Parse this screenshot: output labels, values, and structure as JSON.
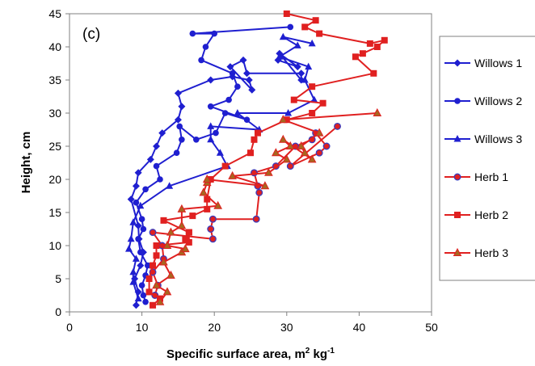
{
  "chart_data": {
    "type": "scatter",
    "panel_label": "(c)",
    "xlabel": "Specific surface area, m",
    "xlabel_sup1": "2",
    "xlabel_mid": " kg",
    "xlabel_sup2": "-1",
    "ylabel": "Height, cm",
    "xlim": [
      0,
      50
    ],
    "ylim": [
      0,
      45
    ],
    "xticks": [
      0,
      10,
      20,
      30,
      40,
      50
    ],
    "yticks": [
      0,
      5,
      10,
      15,
      20,
      25,
      30,
      35,
      40,
      45
    ],
    "grid": false,
    "legend_position": "right",
    "series": [
      {
        "name": "Willows 1",
        "color": "#1f1fd0",
        "marker": "diamond",
        "x": [
          9.2,
          9.5,
          9.0,
          9.8,
          10.2,
          9.6,
          9.5,
          8.5,
          9.2,
          9.5,
          11.2,
          12.0,
          12.8,
          15.0,
          15.5,
          15.0,
          19.5,
          22.5,
          24.8,
          25.2,
          22.2,
          24.0,
          24.5,
          32.0,
          32.0,
          29.0,
          31.5,
          28.8
        ],
        "y": [
          1,
          3,
          5,
          7,
          9,
          11,
          13,
          17,
          19,
          21,
          23,
          25,
          27,
          29,
          31,
          33,
          35,
          35.5,
          35,
          33.5,
          37,
          38,
          36,
          36,
          35,
          39,
          37,
          38
        ]
      },
      {
        "name": "Willows 2",
        "color": "#1f1fd0",
        "marker": "circle",
        "x": [
          10.5,
          10.2,
          10.0,
          10.5,
          10.8,
          9.8,
          9.5,
          10.2,
          10.0,
          9.2,
          10.5,
          12.5,
          12.0,
          14.8,
          15.5,
          15.2,
          17.5,
          20.2,
          21.5,
          24.5,
          19.5,
          22.0,
          23.2,
          22.5,
          18.2,
          18.8,
          20.0,
          17.0,
          30.5
        ],
        "y": [
          1.5,
          2.5,
          4,
          5.5,
          7,
          9,
          11,
          12.5,
          14,
          16.5,
          18.5,
          20,
          22,
          24,
          26,
          28,
          26,
          27,
          30,
          29,
          31,
          32,
          34,
          36,
          38,
          40,
          42,
          42,
          43
        ]
      },
      {
        "name": "Willows 3",
        "color": "#1f1fd0",
        "marker": "triangle",
        "x": [
          9.5,
          8.8,
          8.8,
          9.2,
          8.2,
          8.5,
          8.8,
          9.8,
          13.8,
          21.8,
          20.8,
          19.5,
          19.5,
          26.2,
          23.2,
          30.2,
          33.8,
          32.5,
          33.0,
          29.0,
          31.5,
          29.5,
          33.5
        ],
        "y": [
          2,
          4.5,
          6,
          8,
          9.5,
          11,
          13.5,
          16,
          19,
          22,
          24,
          26,
          28,
          27.5,
          30,
          30,
          32,
          35,
          37,
          38.5,
          40.2,
          41.5,
          40.5
        ]
      },
      {
        "name": "Herb 1",
        "color": "#e02020",
        "marker": "circle",
        "x": [
          11.8,
          12.2,
          11.5,
          13.0,
          12.8,
          11.5,
          19.8,
          19.5,
          19.8,
          25.8,
          26.2,
          26.0,
          25.5,
          28.5,
          31.2,
          33.5,
          34.0,
          35.5,
          34.5,
          30.5,
          37.0
        ],
        "y": [
          2.5,
          4,
          6,
          8,
          10,
          12,
          11,
          12.5,
          14,
          14,
          18,
          19,
          21,
          22,
          25,
          26,
          27,
          25,
          24,
          22,
          28
        ]
      },
      {
        "name": "Herb 2",
        "color": "#e02020",
        "marker": "square",
        "x": [
          11.5,
          12.5,
          11.0,
          11.0,
          11.5,
          12.0,
          12.0,
          16.5,
          16.5,
          16.0,
          16.5,
          13.0,
          17.0,
          19.0,
          19.0,
          19.5,
          21.5,
          25.0,
          25.5,
          26.0,
          30.0,
          33.5,
          35.0,
          31.0,
          33.5,
          42.0,
          39.5,
          40.5,
          42.5,
          43.5,
          41.5,
          34.5,
          32.5,
          34.0,
          30.0
        ],
        "y": [
          1,
          2,
          3,
          5,
          7,
          8.5,
          10,
          10.5,
          12,
          11,
          12,
          13.8,
          14.5,
          15.5,
          17,
          20,
          22,
          24,
          26,
          27,
          29,
          30,
          31.5,
          32,
          34,
          36,
          38.5,
          39,
          40,
          41,
          40.5,
          42,
          43,
          44,
          45
        ]
      },
      {
        "name": "Herb 3",
        "color": "#e02020",
        "marker": "triangle",
        "x": [
          12.5,
          13.5,
          12.0,
          14.0,
          13.0,
          15.5,
          16.0,
          13.5,
          14.0,
          15.5,
          15.5,
          20.5,
          18.5,
          19.0,
          19.0,
          27.0,
          22.5,
          27.5,
          30.0,
          28.5,
          30.5,
          29.5,
          33.5,
          32.5,
          32.0,
          34.5,
          29.5,
          42.5
        ],
        "y": [
          1.5,
          3,
          4,
          5.5,
          7.5,
          9,
          9.5,
          10,
          12,
          13,
          15.5,
          16,
          18,
          19.5,
          20,
          19,
          20.5,
          21,
          23,
          24,
          25,
          26,
          23,
          24,
          25,
          27,
          29,
          30
        ]
      }
    ]
  }
}
